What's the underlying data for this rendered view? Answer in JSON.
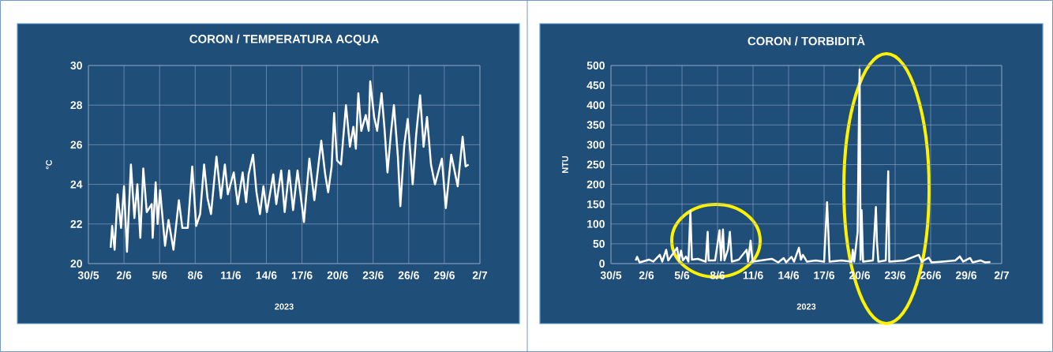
{
  "chart_data": [
    {
      "type": "line",
      "title": "CORON / TEMPERATURA  ACQUA",
      "xlabel": "2023",
      "ylabel": "°C",
      "grid": true,
      "marker": "none",
      "xlim": [
        "2023-05-30",
        "2023-07-02"
      ],
      "xticks": [
        {
          "value": "2023-05-30",
          "label": "30/5"
        },
        {
          "value": "2023-06-02",
          "label": "2/6"
        },
        {
          "value": "2023-06-05",
          "label": "5/6"
        },
        {
          "value": "2023-06-08",
          "label": "8/6"
        },
        {
          "value": "2023-06-11",
          "label": "11/6"
        },
        {
          "value": "2023-06-14",
          "label": "14/6"
        },
        {
          "value": "2023-06-17",
          "label": "17/6"
        },
        {
          "value": "2023-06-20",
          "label": "20/6"
        },
        {
          "value": "2023-06-23",
          "label": "23/6"
        },
        {
          "value": "2023-06-26",
          "label": "26/6"
        },
        {
          "value": "2023-06-29",
          "label": "29/6"
        },
        {
          "value": "2023-07-02",
          "label": "2/7"
        }
      ],
      "ylim": [
        20,
        30
      ],
      "yticks": [
        20,
        22,
        24,
        26,
        28,
        30
      ],
      "series": [
        {
          "color": "#ffffff",
          "x": [
            "2023-05-31T21:00",
            "2023-06-01T00:00",
            "2023-06-01T05:00",
            "2023-06-01T11:00",
            "2023-06-01T18:00",
            "2023-06-02T00:00",
            "2023-06-02T06:00",
            "2023-06-02T14:00",
            "2023-06-02T21:00",
            "2023-06-03T03:00",
            "2023-06-03T09:00",
            "2023-06-03T15:00",
            "2023-06-03T22:00",
            "2023-06-04T08:00",
            "2023-06-04T10:00",
            "2023-06-04T16:00",
            "2023-06-04T20:00",
            "2023-06-05T01:00",
            "2023-06-05T11:00",
            "2023-06-05T18:00",
            "2023-06-06T04:00",
            "2023-06-06T15:00",
            "2023-06-06T22:00",
            "2023-06-07T09:00",
            "2023-06-07T18:00",
            "2023-06-08T02:00",
            "2023-06-08T10:00",
            "2023-06-08T18:00",
            "2023-06-09T01:00",
            "2023-06-09T08:00",
            "2023-06-09T19:00",
            "2023-06-10T04:00",
            "2023-06-10T12:00",
            "2023-06-10T18:00",
            "2023-06-11T06:00",
            "2023-06-11T14:00",
            "2023-06-12T00:00",
            "2023-06-12T07:00",
            "2023-06-12T12:00",
            "2023-06-12T21:00",
            "2023-06-13T04:00",
            "2023-06-13T11:00",
            "2023-06-13T18:00",
            "2023-06-14T01:00",
            "2023-06-14T14:00",
            "2023-06-14T20:00",
            "2023-06-15T06:00",
            "2023-06-15T13:00",
            "2023-06-15T22:00",
            "2023-06-16T06:00",
            "2023-06-16T15:00",
            "2023-06-17T04:00",
            "2023-06-17T15:00",
            "2023-06-18T01:00",
            "2023-06-18T15:00",
            "2023-06-18T23:00",
            "2023-06-19T05:00",
            "2023-06-19T12:00",
            "2023-06-19T17:00",
            "2023-06-19T23:00",
            "2023-06-20T07:00",
            "2023-06-20T17:00",
            "2023-06-21T01:00",
            "2023-06-21T08:00",
            "2023-06-21T13:00",
            "2023-06-21T18:00",
            "2023-06-22T00:00",
            "2023-06-22T09:00",
            "2023-06-22T15:00",
            "2023-06-22T18:00",
            "2023-06-23T02:00",
            "2023-06-23T08:00",
            "2023-06-23T17:00",
            "2023-06-23T23:00",
            "2023-06-24T05:00",
            "2023-06-24T12:00",
            "2023-06-24T18:00",
            "2023-06-25T02:00",
            "2023-06-25T07:00",
            "2023-06-25T15:00",
            "2023-06-25T22:00",
            "2023-06-26T08:00",
            "2023-06-26T15:00",
            "2023-06-26T23:00",
            "2023-06-27T06:00",
            "2023-06-27T13:00",
            "2023-06-27T21:00",
            "2023-06-28T05:00",
            "2023-06-28T19:00",
            "2023-06-29T03:00",
            "2023-06-29T14:00",
            "2023-06-30T03:00",
            "2023-06-30T13:00",
            "2023-06-30T19:00",
            "2023-07-01T01:00"
          ],
          "values": [
            20.8,
            21.9,
            20.7,
            23.5,
            21.8,
            23.9,
            20.6,
            25.0,
            22.3,
            24.0,
            21.3,
            24.8,
            22.6,
            23.0,
            21.3,
            24.1,
            22.0,
            23.7,
            20.9,
            22.2,
            20.7,
            23.2,
            21.8,
            21.8,
            24.9,
            21.9,
            22.5,
            25.0,
            23.3,
            22.5,
            25.4,
            23.3,
            25.0,
            23.5,
            24.6,
            23.0,
            24.6,
            23.1,
            24.5,
            25.5,
            23.6,
            22.5,
            23.9,
            22.6,
            24.5,
            23.0,
            24.7,
            22.6,
            24.7,
            22.7,
            24.7,
            22.1,
            25.3,
            23.2,
            26.2,
            24.5,
            23.6,
            24.9,
            27.6,
            25.2,
            25.0,
            28.0,
            25.9,
            26.9,
            25.8,
            28.6,
            26.7,
            27.5,
            26.7,
            29.2,
            27.4,
            26.7,
            28.6,
            26.8,
            24.6,
            26.6,
            28.0,
            25.4,
            22.9,
            26.0,
            27.3,
            24.0,
            26.5,
            28.5,
            25.9,
            27.4,
            25.0,
            24.0,
            25.3,
            22.8,
            25.5,
            23.9,
            26.4,
            24.9,
            25.0
          ]
        }
      ]
    },
    {
      "type": "line",
      "title": "CORON / TORBIDITÀ",
      "xlabel": "2023",
      "ylabel": "NTU",
      "grid": true,
      "marker": "none",
      "xlim": [
        "2023-05-30",
        "2023-07-02"
      ],
      "xticks": [
        {
          "value": "2023-05-30",
          "label": "30/5"
        },
        {
          "value": "2023-06-02",
          "label": "2/6"
        },
        {
          "value": "2023-06-05",
          "label": "5/6"
        },
        {
          "value": "2023-06-08",
          "label": "8/6"
        },
        {
          "value": "2023-06-11",
          "label": "11/6"
        },
        {
          "value": "2023-06-14",
          "label": "14/6"
        },
        {
          "value": "2023-06-17",
          "label": "17/6"
        },
        {
          "value": "2023-06-20",
          "label": "20/6"
        },
        {
          "value": "2023-06-23",
          "label": "23/6"
        },
        {
          "value": "2023-06-26",
          "label": "26/6"
        },
        {
          "value": "2023-06-29",
          "label": "29/6"
        },
        {
          "value": "2023-07-02",
          "label": "2/7"
        }
      ],
      "ylim": [
        0,
        500
      ],
      "yticks": [
        0,
        50,
        100,
        150,
        200,
        250,
        300,
        350,
        400,
        450,
        500
      ],
      "series": [
        {
          "color": "#ffffff",
          "x": [
            "2023-06-01T02:00",
            "2023-06-01T05:00",
            "2023-06-01T10:00",
            "2023-06-02T05:00",
            "2023-06-02T14:00",
            "2023-06-03T03:00",
            "2023-06-03T08:00",
            "2023-06-03T16:00",
            "2023-06-03T20:00",
            "2023-06-04T14:00",
            "2023-06-04T18:00",
            "2023-06-04T22:00",
            "2023-06-05T02:00",
            "2023-06-05T08:00",
            "2023-06-05T13:00",
            "2023-06-05T17:00",
            "2023-06-05T20:00",
            "2023-06-06T08:00",
            "2023-06-07T00:00",
            "2023-06-07T04:00",
            "2023-06-07T06:00",
            "2023-06-07T19:00",
            "2023-06-08T04:00",
            "2023-06-08T07:00",
            "2023-06-08T11:00",
            "2023-06-08T14:00",
            "2023-06-08T21:00",
            "2023-06-09T01:00",
            "2023-06-09T05:00",
            "2023-06-09T19:00",
            "2023-06-10T11:00",
            "2023-06-10T14:00",
            "2023-06-10T19:00",
            "2023-06-10T23:00",
            "2023-06-12T14:00",
            "2023-06-13T03:00",
            "2023-06-13T14:00",
            "2023-06-13T19:00",
            "2023-06-14T06:00",
            "2023-06-14T11:00",
            "2023-06-14T21:00",
            "2023-06-15T01:00",
            "2023-06-15T05:00",
            "2023-06-15T13:00",
            "2023-06-16T07:00",
            "2023-06-17T00:00",
            "2023-06-17T06:00",
            "2023-06-17T08:00",
            "2023-06-17T11:00",
            "2023-06-18T11:00",
            "2023-06-19T08:00",
            "2023-06-19T10:00",
            "2023-06-19T13:00",
            "2023-06-19T20:00",
            "2023-06-19T22:00",
            "2023-06-20T00:00",
            "2023-06-20T02:00",
            "2023-06-20T04:00",
            "2023-06-20T07:00",
            "2023-06-21T03:00",
            "2023-06-21T09:00",
            "2023-06-21T11:00",
            "2023-06-21T14:00",
            "2023-06-22T05:00",
            "2023-06-22T10:00",
            "2023-06-22T12:00",
            "2023-06-23T19:00",
            "2023-06-25T00:00",
            "2023-06-25T06:00",
            "2023-06-25T20:00",
            "2023-06-26T02:00",
            "2023-06-27T00:00",
            "2023-06-28T02:00",
            "2023-06-28T11:00",
            "2023-06-28T18:00",
            "2023-06-29T08:00",
            "2023-06-29T13:00",
            "2023-06-30T05:00",
            "2023-06-30T14:00",
            "2023-07-01T01:00"
          ],
          "values": [
            8,
            17,
            3,
            10,
            5,
            22,
            5,
            35,
            8,
            40,
            8,
            33,
            8,
            18,
            5,
            133,
            10,
            12,
            5,
            80,
            8,
            8,
            84,
            8,
            86,
            8,
            35,
            80,
            5,
            10,
            35,
            5,
            58,
            5,
            12,
            3,
            14,
            3,
            17,
            5,
            40,
            10,
            22,
            5,
            8,
            5,
            155,
            98,
            5,
            8,
            5,
            35,
            5,
            80,
            315,
            490,
            10,
            135,
            5,
            8,
            143,
            58,
            5,
            8,
            233,
            5,
            8,
            22,
            5,
            15,
            3,
            5,
            8,
            18,
            5,
            14,
            3,
            8,
            3,
            4
          ]
        }
      ]
    }
  ]
}
